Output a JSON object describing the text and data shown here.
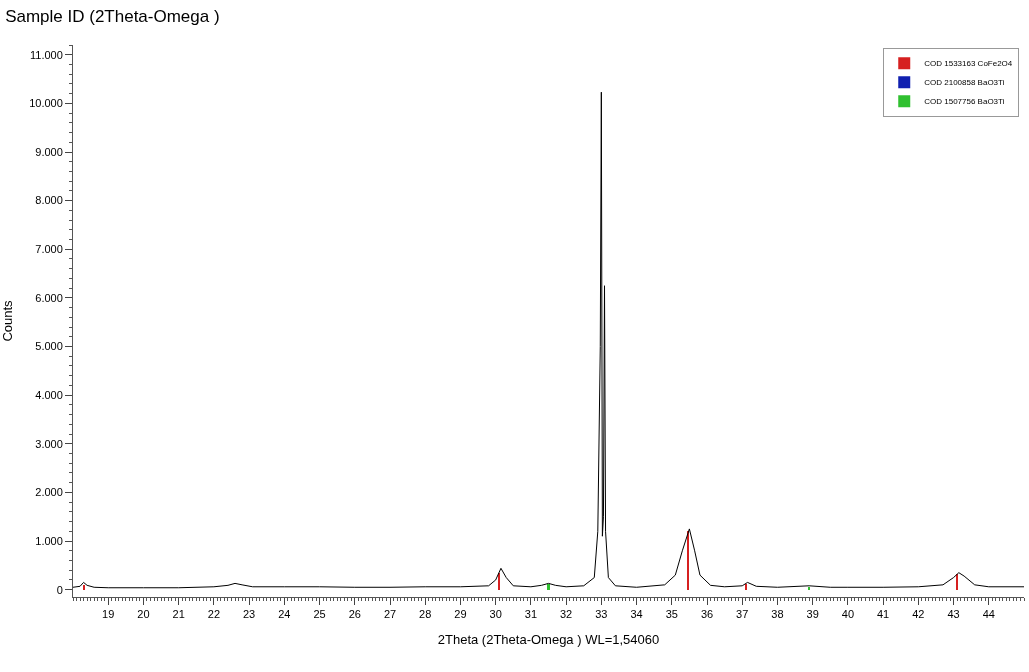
{
  "chart_data": {
    "type": "line",
    "title": "Sample ID (2Theta-Omega )",
    "xlabel": "2Theta (2Theta-Omega ) WL=1,54060",
    "ylabel": "Counts",
    "xlim": [
      18,
      45
    ],
    "xticks": [
      19,
      20,
      21,
      22,
      23,
      24,
      25,
      26,
      27,
      28,
      29,
      30,
      31,
      32,
      33,
      34,
      35,
      36,
      37,
      38,
      39,
      40,
      41,
      42,
      43,
      44
    ],
    "ylim": [
      -150,
      11200
    ],
    "yticks": [
      {
        "value": 0,
        "label": "0"
      },
      {
        "value": 1000,
        "label": "1.000"
      },
      {
        "value": 2000,
        "label": "2.000"
      },
      {
        "value": 3000,
        "label": "3.000"
      },
      {
        "value": 4000,
        "label": "4.000"
      },
      {
        "value": 5000,
        "label": "5.000"
      },
      {
        "value": 6000,
        "label": "6.000"
      },
      {
        "value": 7000,
        "label": "7.000"
      },
      {
        "value": 8000,
        "label": "8.000"
      },
      {
        "value": 9000,
        "label": "9.000"
      },
      {
        "value": 10000,
        "label": "10.000"
      },
      {
        "value": 11000,
        "label": "11.000"
      }
    ],
    "legend": "top right",
    "marker": "none",
    "line_style": "solid",
    "series": [
      {
        "color": "#000000",
        "x": [
          18.0,
          18.2,
          18.3,
          18.4,
          18.6,
          19,
          20,
          21,
          22,
          22.4,
          22.6,
          22.8,
          23.1,
          24,
          25,
          26,
          27,
          28,
          29,
          29.8,
          30.0,
          30.15,
          30.3,
          30.5,
          31,
          31.3,
          31.5,
          31.7,
          32,
          32.5,
          32.8,
          32.9,
          32.97,
          33.0,
          33.03,
          33.06,
          33.09,
          33.12,
          33.2,
          33.4,
          34,
          34.8,
          35.1,
          35.3,
          35.5,
          35.65,
          35.8,
          36.1,
          36.5,
          37.0,
          37.15,
          37.4,
          38,
          38.9,
          39.5,
          40,
          41,
          42,
          42.7,
          43.0,
          43.15,
          43.3,
          43.6,
          44,
          45
        ],
        "values": [
          50,
          70,
          150,
          90,
          50,
          40,
          40,
          40,
          60,
          90,
          130,
          100,
          60,
          60,
          60,
          50,
          50,
          60,
          60,
          80,
          200,
          440,
          250,
          80,
          60,
          90,
          130,
          90,
          60,
          80,
          250,
          1200,
          5000,
          10230,
          1100,
          1500,
          6250,
          1200,
          250,
          80,
          50,
          100,
          300,
          800,
          1250,
          800,
          300,
          90,
          60,
          80,
          150,
          70,
          50,
          80,
          50,
          50,
          50,
          60,
          100,
          250,
          350,
          280,
          100,
          60,
          60
        ]
      },
      {
        "type": "bar",
        "name": "COD 1533163 CoFe2O4",
        "color": "#d62020",
        "x": [
          18.3,
          30.1,
          35.45,
          37.1,
          43.1
        ],
        "values": [
          100,
          350,
          1200,
          120,
          330
        ]
      },
      {
        "type": "bar",
        "name": "COD 2100858 BaO3Ti",
        "color": "#1020b0"
      },
      {
        "type": "bar",
        "name": "COD 1507756 BaO3Ti",
        "color": "#30c030",
        "x": [
          31.5,
          38.9
        ],
        "values": [
          120,
          60
        ]
      }
    ]
  }
}
